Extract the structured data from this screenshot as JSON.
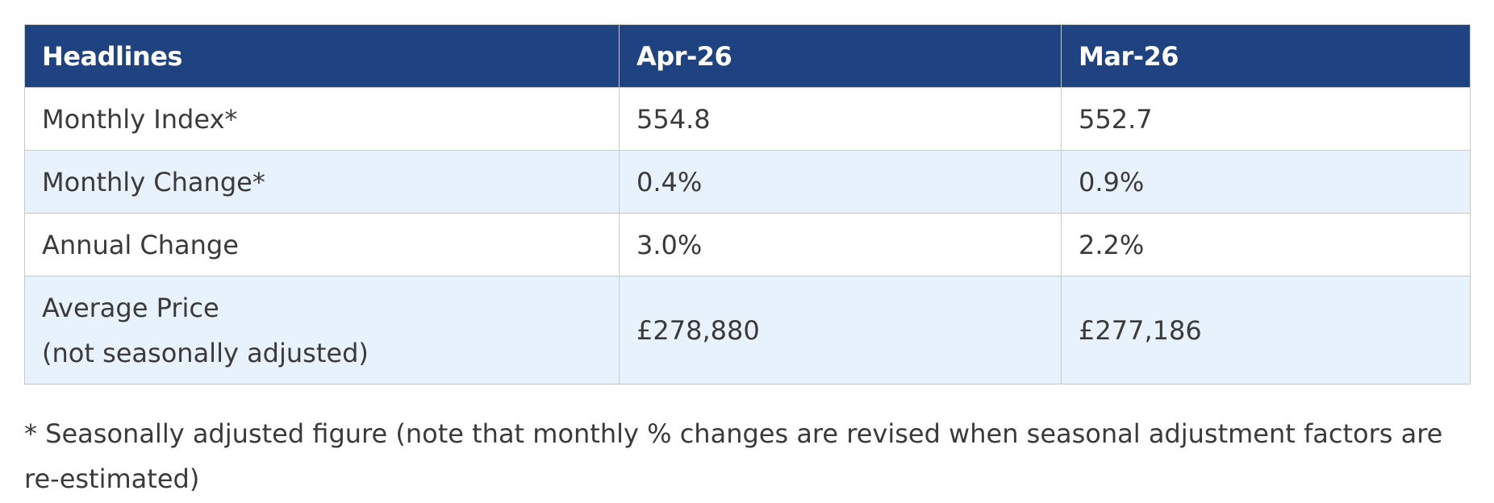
{
  "table": {
    "columns": [
      "Headlines",
      "Apr-26",
      "Mar-26"
    ],
    "rows": [
      [
        [
          "Monthly Index*"
        ],
        "554.8",
        "552.7"
      ],
      [
        [
          "Monthly Change*"
        ],
        "0.4%",
        "0.9%"
      ],
      [
        [
          "Annual Change"
        ],
        "3.0%",
        "2.2%"
      ],
      [
        [
          "Average Price",
          "(not seasonally adjusted)"
        ],
        "£278,880",
        "£277,186"
      ]
    ]
  },
  "footnote": "* Seasonally adjusted figure (note that monthly % changes are revised when seasonal adjustment factors are re-estimated)"
}
